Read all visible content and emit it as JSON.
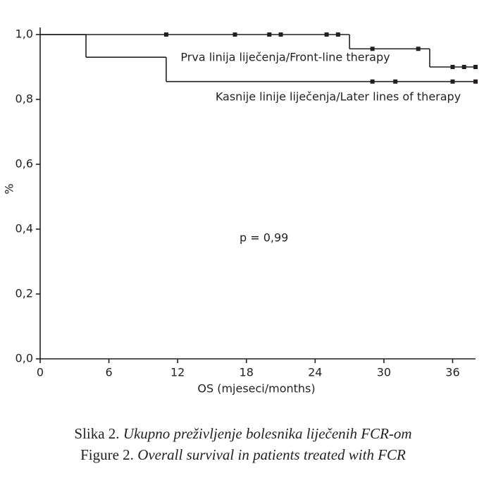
{
  "chart_data": {
    "type": "km",
    "xlabel": "OS (mjeseci/months)",
    "ylabel": "%",
    "xlim": [
      0,
      38
    ],
    "ylim": [
      0,
      1
    ],
    "xticks": [
      0,
      6,
      12,
      18,
      24,
      30,
      36
    ],
    "yticks": [
      {
        "value": 0,
        "label": "0,0"
      },
      {
        "value": 0.2,
        "label": "0,2"
      },
      {
        "value": 0.4,
        "label": "0,4"
      },
      {
        "value": 0.6,
        "label": "0,6"
      },
      {
        "value": 0.8,
        "label": "0,8"
      },
      {
        "value": 1,
        "label": "1,0"
      }
    ],
    "color": "#231f20",
    "series": [
      {
        "name": "Prva linija liječenja/Front-line therapy",
        "x": [
          0,
          27,
          34,
          38
        ],
        "values": [
          1,
          0.956,
          0.9,
          0.9
        ],
        "censored_x": [
          11,
          17,
          20,
          21,
          25,
          26,
          29,
          33,
          36,
          37,
          38
        ],
        "censored_values": [
          1,
          1,
          1,
          1,
          1,
          1,
          0.956,
          0.956,
          0.9,
          0.9,
          0.9
        ]
      },
      {
        "name": "Kasnije linije liječenja/Later lines of therapy",
        "x": [
          0,
          4,
          11,
          38
        ],
        "values": [
          1,
          0.93,
          0.855,
          0.855
        ],
        "censored_x": [
          29,
          31,
          36,
          38
        ],
        "censored_values": [
          0.855,
          0.855,
          0.855,
          0.855
        ]
      }
    ],
    "annotations": [
      {
        "text": "p = 0,99"
      }
    ],
    "caption": [
      {
        "label": "Slika 2.",
        "text": "Ukupno preživljenje bolesnika liječenih FCR-om"
      },
      {
        "label": "Figure 2.",
        "text": "Overall survival in patients treated with FCR"
      }
    ]
  }
}
